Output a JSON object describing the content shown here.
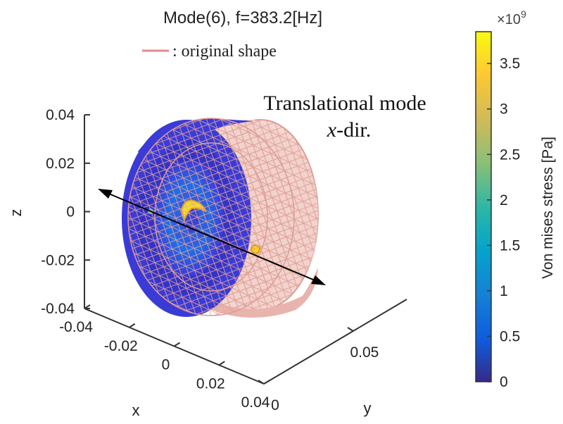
{
  "chart_data": {
    "type": "surface3d",
    "title": "Mode(6), f=383.2[Hz]",
    "legend": {
      "entry": ": original shape",
      "line_color": "#e08a8a",
      "placement": "top"
    },
    "annotation": {
      "line1": "Translational mode",
      "line2_italic": "x",
      "line2_rest": "-dir."
    },
    "axes": {
      "x": {
        "label": "x",
        "ticks": [
          "-0.04",
          "-0.02",
          "0",
          "0.02",
          "0.04"
        ],
        "range": [
          -0.04,
          0.04
        ]
      },
      "y": {
        "label": "y",
        "ticks": [
          "0",
          "0.05"
        ],
        "range": [
          0,
          0.08
        ]
      },
      "z": {
        "label": "z",
        "ticks": [
          "0.04",
          "0.02",
          "0",
          "-0.02",
          "-0.04"
        ],
        "range": [
          -0.04,
          0.04
        ]
      }
    },
    "colorbar": {
      "label": "Von mises stress [Pa]",
      "multiplier": "×10",
      "exponent": "9",
      "ticks": [
        "3.5",
        "3",
        "2.5",
        "2",
        "1.5",
        "1",
        "0.5",
        "0"
      ],
      "tick_values": [
        3.5,
        3.0,
        2.5,
        2.0,
        1.5,
        1.0,
        0.5,
        0.0
      ],
      "range": [
        0,
        3.85
      ],
      "colormap": "parula"
    },
    "mode_number": 6,
    "frequency_hz": 383.2
  }
}
